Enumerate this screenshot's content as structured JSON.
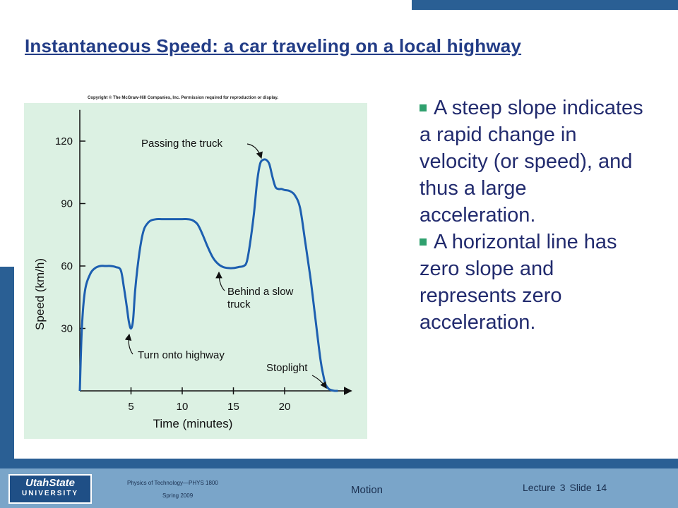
{
  "slide": {
    "title": "Instantaneous Speed: a car traveling on a local highway",
    "copyright": "Copyright © The McGraw-Hill Companies, Inc. Permission required for reproduction or display."
  },
  "bullets": [
    "A steep slope indicates  a rapid change in velocity (or speed), and thus a large acceleration.",
    "A horizontal line has zero slope and represents zero acceleration."
  ],
  "footer": {
    "logo_top": "UtahState",
    "logo_bottom": "UNIVERSITY",
    "course": "Physics of Technology—PHYS 1800",
    "term": "Spring 2009",
    "topic": "Motion",
    "lecture_label": "Lecture",
    "lecture_number": "3",
    "slide_label": "Slide",
    "slide_number": "14"
  },
  "colors": {
    "title": "#223c86",
    "bullet_text": "#222b6e",
    "bullet_mark": "#2fa06e",
    "theme_blue": "#2a5f94",
    "footer": "#7aa5c9",
    "chart_background": "#dcf1e3",
    "curve": "#1d5fb0"
  },
  "chart_data": {
    "type": "line",
    "xlabel": "Time (minutes)",
    "ylabel": "Speed (km/h)",
    "x_ticks": [
      5,
      10,
      15,
      20
    ],
    "y_ticks": [
      30,
      60,
      90,
      120
    ],
    "xlim": [
      0,
      26.5
    ],
    "ylim": [
      0,
      135
    ],
    "grid": false,
    "series": [
      {
        "x": [
          0,
          0.2,
          0.5,
          1,
          1.5,
          2,
          2.5,
          3,
          3.5,
          4,
          4.3,
          4.6,
          4.8,
          5,
          5.2,
          5.4,
          5.7,
          6,
          6.3,
          6.7,
          7,
          7.5,
          8,
          9,
          10,
          10.5,
          11,
          11.5,
          12,
          12.5,
          13,
          13.5,
          14,
          14.5,
          15,
          15.5,
          16,
          16.3,
          16.6,
          17,
          17.3,
          17.6,
          17.9,
          18.2,
          18.5,
          18.8,
          19.1,
          19.4,
          19.7,
          20,
          20.5,
          21,
          21.5,
          22,
          22.5,
          23,
          23.5,
          23.8,
          24,
          24.3,
          24.6,
          24.9,
          25.2
        ],
        "y": [
          0,
          30,
          48,
          56,
          59,
          60,
          60,
          60,
          59.5,
          58,
          50,
          40,
          33,
          30,
          34,
          48,
          62,
          72,
          78,
          81,
          82,
          82.5,
          82.5,
          82.5,
          82.5,
          82.5,
          82,
          80,
          75,
          69,
          64,
          61,
          59.5,
          59,
          59,
          59.5,
          60,
          62,
          70,
          85,
          100,
          109,
          111,
          111,
          109,
          103,
          98,
          97,
          97,
          96.5,
          96,
          94,
          88,
          72,
          55,
          35,
          15,
          7,
          3,
          1,
          0.3,
          0,
          0
        ]
      }
    ],
    "annotations": [
      {
        "text": "Passing the truck",
        "x": 17.8,
        "y": 111
      },
      {
        "text": "Behind a slow truck",
        "lines": [
          "Behind a slow",
          "truck"
        ],
        "x": 13.5,
        "y": 59
      },
      {
        "text": "Turn onto highway",
        "x": 5,
        "y": 30
      },
      {
        "text": "Stoplight",
        "x": 24.6,
        "y": 0
      }
    ]
  }
}
